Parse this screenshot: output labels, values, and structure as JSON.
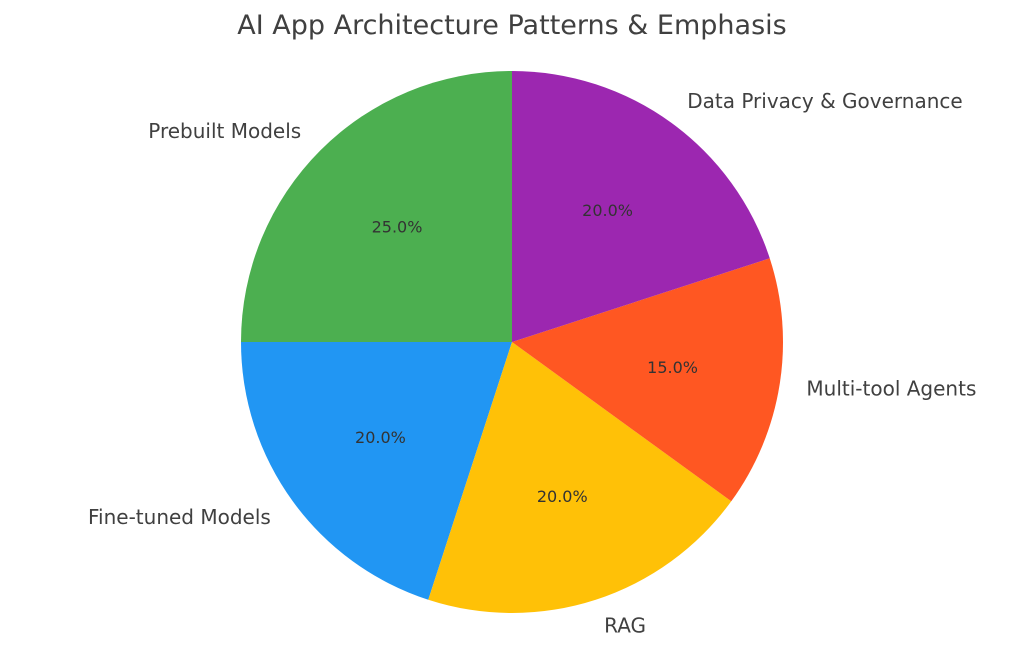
{
  "chart_data": {
    "type": "pie",
    "title": "AI App Architecture Patterns & Emphasis",
    "start_angle_deg": 90,
    "direction": "counterclockwise",
    "autopct_format": "{v}%",
    "slices": [
      {
        "label": "Prebuilt Models",
        "value": 25.0,
        "pct_label": "25.0%",
        "color": "#4CAF50"
      },
      {
        "label": "Fine-tuned Models",
        "value": 20.0,
        "pct_label": "20.0%",
        "color": "#2196F3"
      },
      {
        "label": "RAG",
        "value": 20.0,
        "pct_label": "20.0%",
        "color": "#FFC107"
      },
      {
        "label": "Multi-tool Agents",
        "value": 15.0,
        "pct_label": "15.0%",
        "color": "#FF5722"
      },
      {
        "label": "Data Privacy & Governance",
        "value": 20.0,
        "pct_label": "20.0%",
        "color": "#9C27B0"
      }
    ]
  }
}
